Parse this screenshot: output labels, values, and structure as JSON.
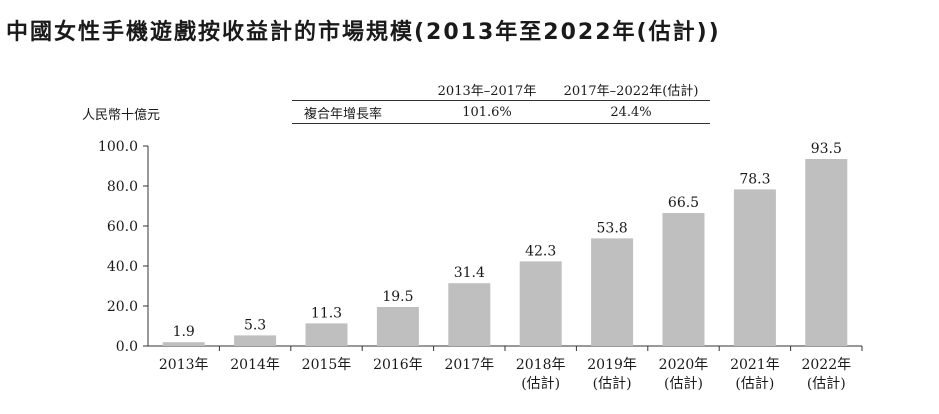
{
  "title": "中國女性手機遊戲按收益計的市場規模(2013年至2022年(估計))",
  "unit_label": "人民幣十億元",
  "cagr_table": {
    "header": [
      "",
      "2013年–2017年",
      "2017年–2022年(估計)"
    ],
    "row": [
      "複合年增長率",
      "101.6%",
      "24.4%"
    ]
  },
  "chart_data": {
    "type": "bar",
    "categories": [
      "2013年",
      "2014年",
      "2015年",
      "2016年",
      "2017年",
      "2018年",
      "2019年",
      "2020年",
      "2021年",
      "2022年"
    ],
    "category_notes": [
      "",
      "",
      "",
      "",
      "",
      "(估計)",
      "(估計)",
      "(估計)",
      "(估計)",
      "(估計)"
    ],
    "values": [
      1.9,
      5.3,
      11.3,
      19.5,
      31.4,
      42.3,
      53.8,
      66.5,
      78.3,
      93.5
    ],
    "data_labels": [
      "1.9",
      "5.3",
      "11.3",
      "19.5",
      "31.4",
      "42.3",
      "53.8",
      "66.5",
      "78.3",
      "93.5"
    ],
    "ylim": [
      0,
      100
    ],
    "yticks": [
      0,
      20,
      40,
      60,
      80,
      100
    ],
    "ytick_labels": [
      "0.0",
      "20.0",
      "40.0",
      "60.0",
      "80.0",
      "100.0"
    ],
    "ylabel": "人民幣十億元",
    "xlabel": "",
    "bar_color": "#bfbfbf",
    "grid": false
  }
}
